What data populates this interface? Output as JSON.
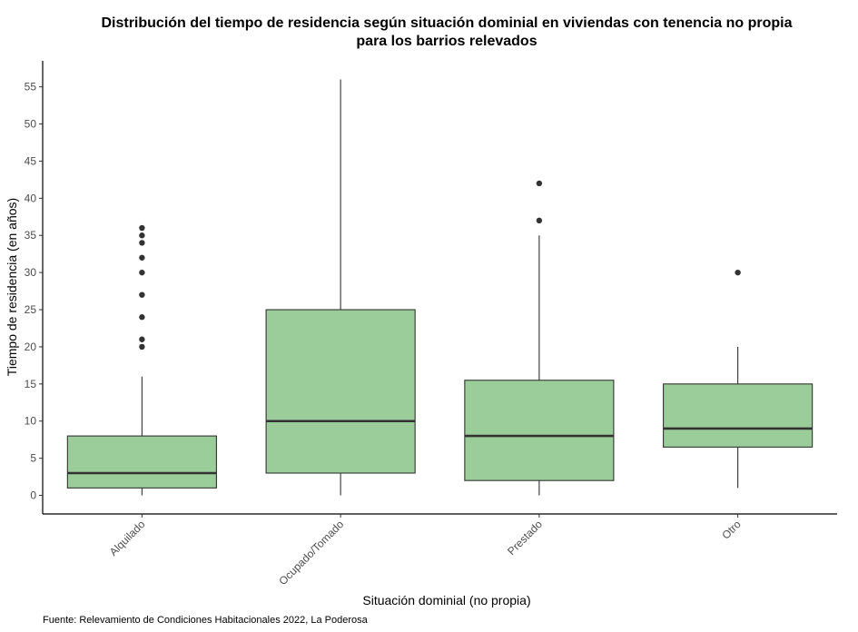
{
  "chart_data": {
    "type": "boxplot",
    "title_line1": "Distribución del tiempo de residencia según situación dominial en viviendas con tenencia no propia",
    "title_line2": "para los barrios relevados",
    "xlabel": "Situación dominial (no propia)",
    "ylabel": "Tiempo de residencia (en años)",
    "caption": "Fuente: Relevamiento de Condiciones Habitacionales 2022, La Poderosa",
    "ylim": [
      -2.5,
      58.5
    ],
    "yticks": [
      0,
      5,
      10,
      15,
      20,
      25,
      30,
      35,
      40,
      45,
      50,
      55
    ],
    "grid": false,
    "colors": {
      "box_fill": "#9acd99",
      "box_stroke": "#333333",
      "axis": "#000000"
    },
    "categories": [
      "Alquilado",
      "Ocupado/Tomado",
      "Prestado",
      "Otro"
    ],
    "boxes": [
      {
        "category": "Alquilado",
        "min": 0,
        "q1": 1,
        "median": 3,
        "q3": 8,
        "max": 16,
        "outliers": [
          20,
          21,
          24,
          27,
          30,
          32,
          34,
          35,
          36
        ]
      },
      {
        "category": "Ocupado/Tomado",
        "min": 0,
        "q1": 3,
        "median": 10,
        "q3": 25,
        "max": 56,
        "outliers": []
      },
      {
        "category": "Prestado",
        "min": 0,
        "q1": 2,
        "median": 8,
        "q3": 15.5,
        "max": 35,
        "outliers": [
          37,
          42
        ]
      },
      {
        "category": "Otro",
        "min": 1,
        "q1": 6.5,
        "median": 9,
        "q3": 15,
        "max": 20,
        "outliers": [
          30
        ]
      }
    ]
  }
}
